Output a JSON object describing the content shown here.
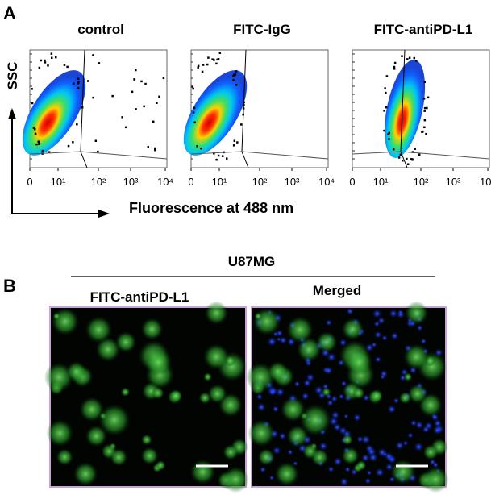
{
  "panel_a": {
    "label": "A",
    "y_axis_label": "SSC",
    "x_axis_label": "Fluorescence at 488 nm",
    "plots": [
      {
        "title": "control"
      },
      {
        "title": "FITC-IgG"
      },
      {
        "title": "FITC-antiPD-L1"
      }
    ],
    "x_tick_labels": [
      "0",
      "10¹",
      "10²",
      "10³",
      "10⁴"
    ]
  },
  "panel_b": {
    "label": "B",
    "cell_line": "U87MG",
    "images": [
      {
        "title": "FITC-antiPD-L1"
      },
      {
        "title": "Merged"
      }
    ]
  }
}
